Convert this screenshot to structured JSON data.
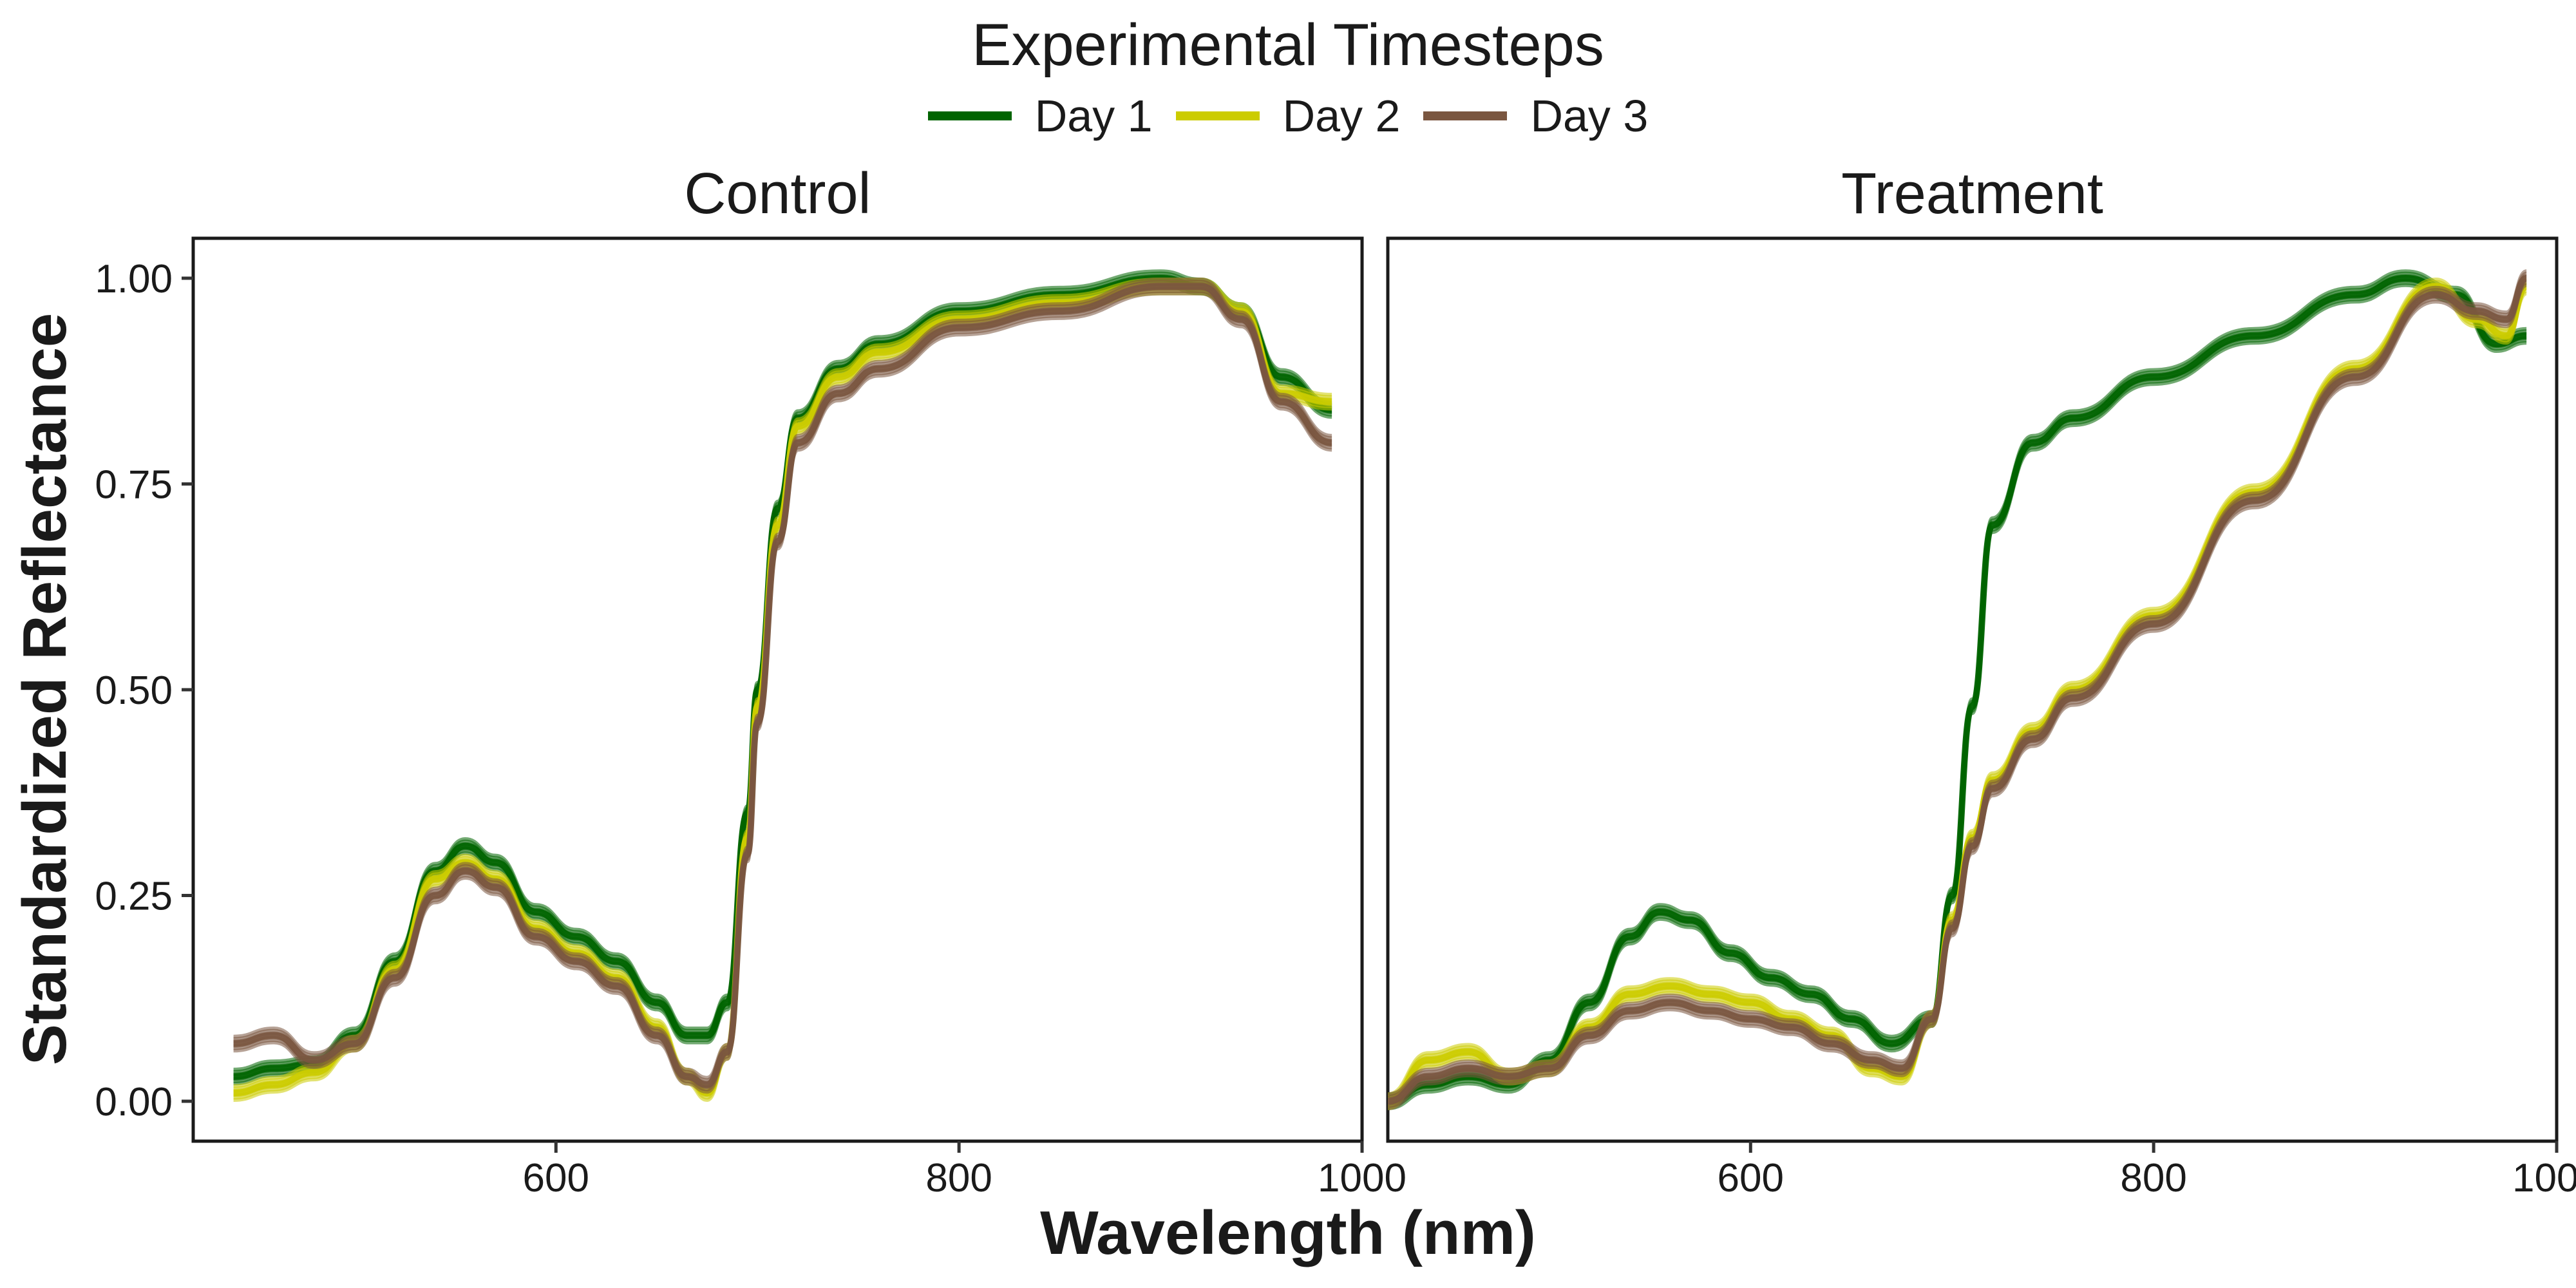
{
  "legend": {
    "title": "Experimental Timesteps",
    "items": [
      {
        "label": "Day 1",
        "color": "#006400"
      },
      {
        "label": "Day 2",
        "color": "#cccc00"
      },
      {
        "label": "Day 3",
        "color": "#7a5640"
      }
    ]
  },
  "chart_data": {
    "type": "line",
    "xlabel": "Wavelength (nm)",
    "ylabel": "Standardized Reflectance",
    "xlim": [
      420,
      1000
    ],
    "ylim": [
      0,
      1
    ],
    "x_ticks": [
      600,
      800,
      1000
    ],
    "y_ticks": [
      0,
      0.25,
      0.5,
      0.75,
      1.0
    ],
    "y_tick_labels": [
      "0.00",
      "0.25",
      "0.50",
      "0.75",
      "1.00"
    ],
    "grid": false,
    "legend_position": "top",
    "panels": [
      {
        "title": "Control",
        "series": [
          {
            "name": "Day 1",
            "x": [
              440,
              460,
              480,
              500,
              520,
              540,
              555,
              570,
              590,
              610,
              630,
              650,
              665,
              675,
              685,
              695,
              700,
              710,
              720,
              740,
              760,
              800,
              850,
              900,
              920,
              940,
              960,
              985
            ],
            "y": [
              0.03,
              0.04,
              0.045,
              0.08,
              0.17,
              0.28,
              0.31,
              0.29,
              0.23,
              0.2,
              0.17,
              0.12,
              0.08,
              0.08,
              0.12,
              0.35,
              0.5,
              0.72,
              0.83,
              0.89,
              0.92,
              0.96,
              0.98,
              1.0,
              0.99,
              0.96,
              0.88,
              0.84
            ]
          },
          {
            "name": "Day 2",
            "x": [
              440,
              460,
              480,
              500,
              520,
              540,
              555,
              570,
              590,
              610,
              630,
              650,
              665,
              675,
              685,
              695,
              700,
              710,
              720,
              740,
              760,
              800,
              850,
              900,
              920,
              940,
              960,
              985
            ],
            "y": [
              0.01,
              0.02,
              0.035,
              0.07,
              0.16,
              0.27,
              0.29,
              0.27,
              0.21,
              0.18,
              0.15,
              0.09,
              0.03,
              0.01,
              0.06,
              0.32,
              0.48,
              0.7,
              0.82,
              0.88,
              0.91,
              0.95,
              0.97,
              0.99,
              0.99,
              0.96,
              0.86,
              0.85
            ]
          },
          {
            "name": "Day 3",
            "x": [
              440,
              460,
              480,
              500,
              520,
              540,
              555,
              570,
              590,
              610,
              630,
              650,
              665,
              675,
              685,
              695,
              700,
              710,
              720,
              740,
              760,
              800,
              850,
              900,
              920,
              940,
              960,
              985
            ],
            "y": [
              0.07,
              0.08,
              0.05,
              0.07,
              0.15,
              0.25,
              0.28,
              0.26,
              0.2,
              0.17,
              0.14,
              0.08,
              0.03,
              0.02,
              0.06,
              0.3,
              0.46,
              0.68,
              0.8,
              0.86,
              0.89,
              0.94,
              0.96,
              0.99,
              0.99,
              0.95,
              0.85,
              0.8
            ]
          }
        ]
      },
      {
        "title": "Treatment",
        "series": [
          {
            "name": "Day 1",
            "x": [
              420,
              440,
              460,
              480,
              500,
              520,
              540,
              555,
              570,
              590,
              610,
              630,
              650,
              670,
              690,
              700,
              710,
              720,
              740,
              760,
              800,
              850,
              900,
              925,
              950,
              970,
              985
            ],
            "y": [
              0.0,
              0.02,
              0.03,
              0.02,
              0.05,
              0.12,
              0.2,
              0.23,
              0.22,
              0.18,
              0.15,
              0.13,
              0.1,
              0.07,
              0.1,
              0.25,
              0.48,
              0.7,
              0.8,
              0.83,
              0.88,
              0.93,
              0.98,
              1.0,
              0.98,
              0.92,
              0.93
            ]
          },
          {
            "name": "Day 2",
            "x": [
              420,
              440,
              460,
              480,
              500,
              520,
              540,
              560,
              580,
              600,
              620,
              640,
              660,
              675,
              690,
              700,
              710,
              720,
              740,
              760,
              800,
              850,
              900,
              940,
              960,
              975,
              985
            ],
            "y": [
              0.0,
              0.05,
              0.06,
              0.03,
              0.04,
              0.09,
              0.13,
              0.14,
              0.13,
              0.12,
              0.1,
              0.08,
              0.04,
              0.03,
              0.1,
              0.22,
              0.32,
              0.39,
              0.45,
              0.5,
              0.59,
              0.74,
              0.89,
              0.99,
              0.95,
              0.93,
              0.99
            ]
          },
          {
            "name": "Day 3",
            "x": [
              420,
              440,
              460,
              480,
              500,
              520,
              540,
              560,
              580,
              600,
              620,
              640,
              660,
              675,
              690,
              700,
              710,
              720,
              740,
              760,
              800,
              850,
              900,
              940,
              960,
              975,
              985
            ],
            "y": [
              0.0,
              0.03,
              0.04,
              0.03,
              0.04,
              0.08,
              0.11,
              0.12,
              0.11,
              0.1,
              0.09,
              0.07,
              0.05,
              0.04,
              0.1,
              0.21,
              0.31,
              0.38,
              0.44,
              0.49,
              0.58,
              0.73,
              0.88,
              0.98,
              0.96,
              0.95,
              1.0
            ]
          }
        ]
      }
    ]
  }
}
